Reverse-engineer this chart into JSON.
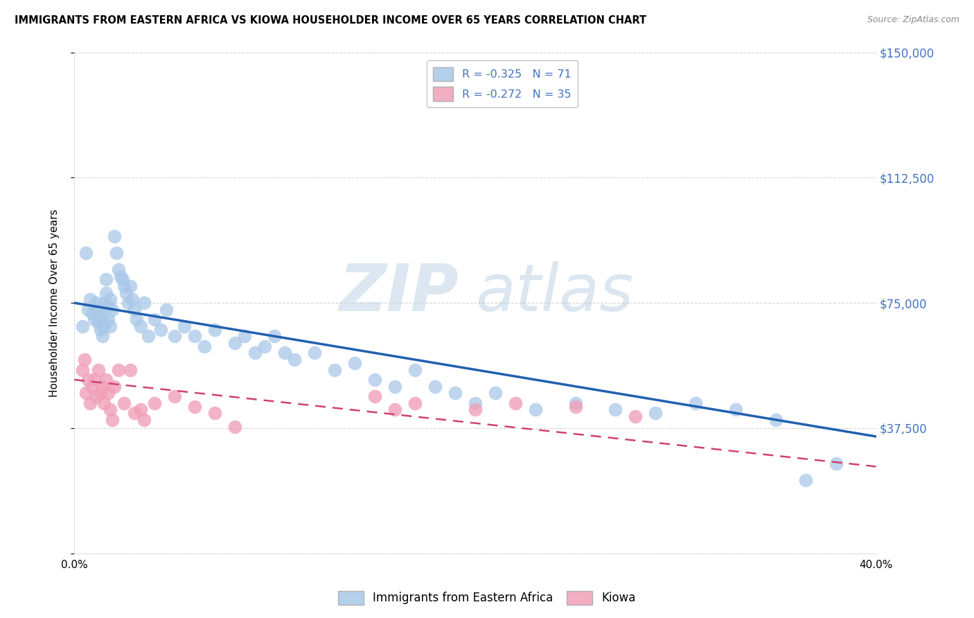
{
  "title": "IMMIGRANTS FROM EASTERN AFRICA VS KIOWA HOUSEHOLDER INCOME OVER 65 YEARS CORRELATION CHART",
  "source": "Source: ZipAtlas.com",
  "ylabel": "Householder Income Over 65 years",
  "xlim": [
    0.0,
    0.4
  ],
  "ylim": [
    0,
    150000
  ],
  "yticks": [
    0,
    37500,
    75000,
    112500,
    150000
  ],
  "ytick_labels": [
    "",
    "$37,500",
    "$75,000",
    "$112,500",
    "$150,000"
  ],
  "xticks": [
    0.0,
    0.1,
    0.2,
    0.3,
    0.4
  ],
  "xtick_labels": [
    "0.0%",
    "",
    "",
    "",
    "40.0%"
  ],
  "legend_blue_r": "-0.325",
  "legend_blue_n": "71",
  "legend_pink_r": "-0.272",
  "legend_pink_n": "35",
  "blue_scatter_color": "#a8c8e8",
  "blue_line_color": "#2060b0",
  "pink_scatter_color": "#f0a0b8",
  "pink_line_color": "#d04070",
  "legend_text_color": "#4472c4",
  "watermark_zip": "ZIP",
  "watermark_atlas": "atlas",
  "watermark_color_zip": "#c8d8e8",
  "watermark_color_atlas": "#b8cce0",
  "right_tick_color": "#4472c4",
  "blue_scatter_x": [
    0.004,
    0.006,
    0.007,
    0.008,
    0.009,
    0.01,
    0.011,
    0.012,
    0.012,
    0.013,
    0.013,
    0.014,
    0.014,
    0.015,
    0.015,
    0.016,
    0.016,
    0.017,
    0.017,
    0.018,
    0.018,
    0.019,
    0.02,
    0.021,
    0.022,
    0.023,
    0.024,
    0.025,
    0.026,
    0.027,
    0.028,
    0.029,
    0.03,
    0.031,
    0.033,
    0.035,
    0.037,
    0.04,
    0.043,
    0.046,
    0.05,
    0.055,
    0.06,
    0.065,
    0.07,
    0.08,
    0.085,
    0.09,
    0.095,
    0.1,
    0.105,
    0.11,
    0.12,
    0.13,
    0.14,
    0.15,
    0.16,
    0.17,
    0.18,
    0.19,
    0.2,
    0.21,
    0.23,
    0.25,
    0.27,
    0.29,
    0.31,
    0.33,
    0.35,
    0.365,
    0.38
  ],
  "blue_scatter_y": [
    68000,
    90000,
    73000,
    76000,
    72000,
    70000,
    75000,
    69000,
    73000,
    67000,
    71000,
    65000,
    70000,
    75000,
    68000,
    82000,
    78000,
    74000,
    70000,
    76000,
    68000,
    73000,
    95000,
    90000,
    85000,
    83000,
    82000,
    80000,
    78000,
    75000,
    80000,
    76000,
    73000,
    70000,
    68000,
    75000,
    65000,
    70000,
    67000,
    73000,
    65000,
    68000,
    65000,
    62000,
    67000,
    63000,
    65000,
    60000,
    62000,
    65000,
    60000,
    58000,
    60000,
    55000,
    57000,
    52000,
    50000,
    55000,
    50000,
    48000,
    45000,
    48000,
    43000,
    45000,
    43000,
    42000,
    45000,
    43000,
    40000,
    22000,
    27000
  ],
  "pink_scatter_x": [
    0.004,
    0.005,
    0.006,
    0.007,
    0.008,
    0.009,
    0.01,
    0.011,
    0.012,
    0.013,
    0.014,
    0.015,
    0.016,
    0.017,
    0.018,
    0.019,
    0.02,
    0.022,
    0.025,
    0.028,
    0.03,
    0.033,
    0.035,
    0.04,
    0.05,
    0.06,
    0.07,
    0.08,
    0.15,
    0.16,
    0.17,
    0.2,
    0.22,
    0.25,
    0.28
  ],
  "pink_scatter_y": [
    55000,
    58000,
    48000,
    52000,
    45000,
    50000,
    52000,
    47000,
    55000,
    48000,
    50000,
    45000,
    52000,
    48000,
    43000,
    40000,
    50000,
    55000,
    45000,
    55000,
    42000,
    43000,
    40000,
    45000,
    47000,
    44000,
    42000,
    38000,
    47000,
    43000,
    45000,
    43000,
    45000,
    44000,
    41000
  ],
  "blue_trend_x": [
    0.0,
    0.4
  ],
  "blue_trend_y": [
    75000,
    35000
  ],
  "pink_trend_x": [
    0.0,
    0.4
  ],
  "pink_trend_y": [
    52000,
    26000
  ],
  "background_color": "#ffffff",
  "grid_color": "#d0d0d0"
}
